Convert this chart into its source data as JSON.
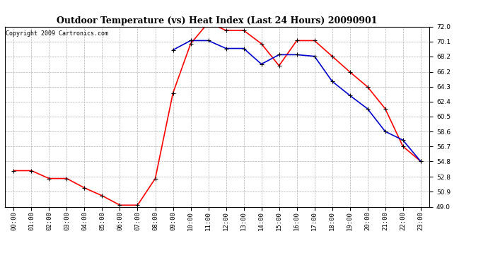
{
  "title": "Outdoor Temperature (vs) Heat Index (Last 24 Hours) 20090901",
  "copyright": "Copyright 2009 Cartronics.com",
  "x_labels": [
    "00:00",
    "01:00",
    "02:00",
    "03:00",
    "04:00",
    "05:00",
    "06:00",
    "07:00",
    "08:00",
    "09:00",
    "10:00",
    "11:00",
    "12:00",
    "13:00",
    "14:00",
    "15:00",
    "16:00",
    "17:00",
    "18:00",
    "19:00",
    "20:00",
    "21:00",
    "22:00",
    "23:00"
  ],
  "y_ticks": [
    49.0,
    50.9,
    52.8,
    54.8,
    56.7,
    58.6,
    60.5,
    62.4,
    64.3,
    66.2,
    68.2,
    70.1,
    72.0
  ],
  "y_min": 49.0,
  "y_max": 72.0,
  "temp_red": [
    53.6,
    53.6,
    52.6,
    52.6,
    51.4,
    50.4,
    49.2,
    49.2,
    52.6,
    63.5,
    69.8,
    72.5,
    71.5,
    71.5,
    69.8,
    67.0,
    70.2,
    70.2,
    68.2,
    66.2,
    64.3,
    61.5,
    56.7,
    54.8
  ],
  "temp_blue": [
    null,
    null,
    null,
    null,
    null,
    null,
    null,
    null,
    null,
    69.0,
    70.2,
    70.2,
    69.2,
    69.2,
    67.2,
    68.4,
    68.4,
    68.2,
    65.0,
    63.2,
    61.5,
    58.6,
    57.5,
    54.8
  ],
  "red_color": "#ff0000",
  "blue_color": "#0000cc",
  "bg_color": "#ffffff",
  "grid_color": "#b0b0b0",
  "title_fontsize": 9,
  "copyright_fontsize": 6,
  "marker": "+",
  "marker_color": "#000000",
  "marker_size": 4,
  "marker_linewidth": 0.8,
  "line_width": 1.2
}
